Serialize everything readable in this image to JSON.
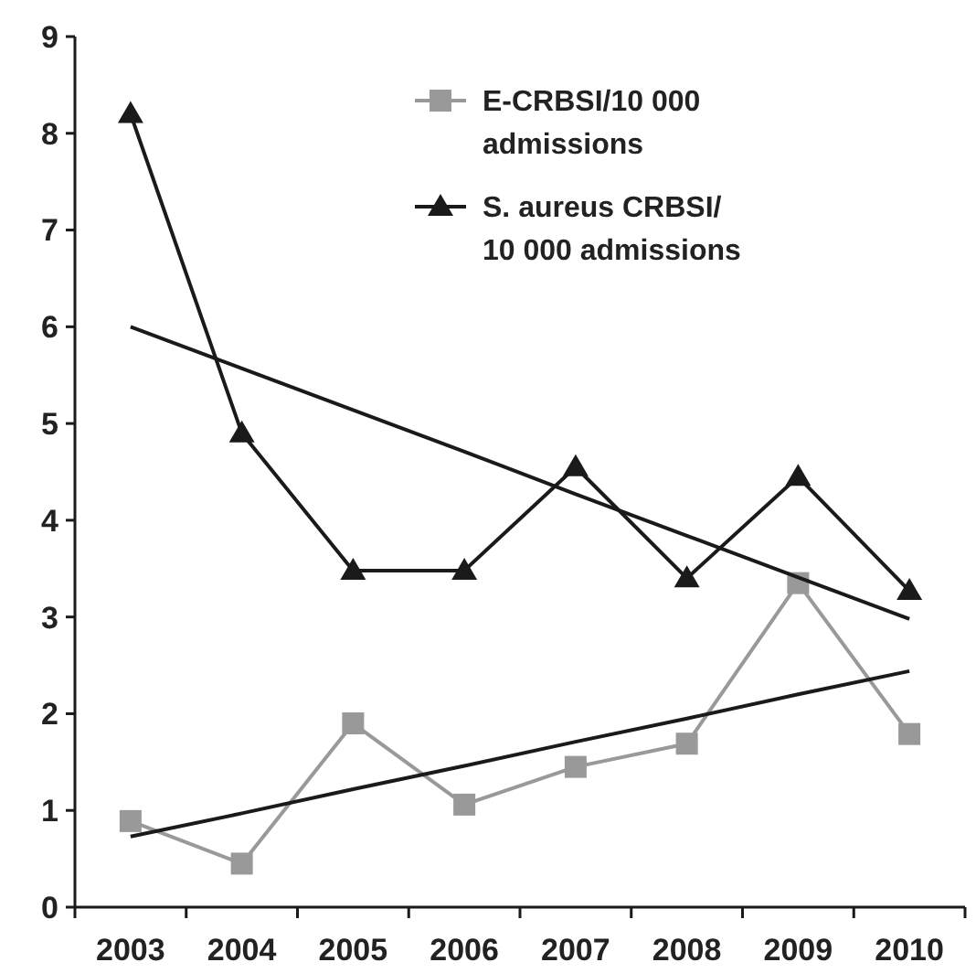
{
  "chart_data": {
    "type": "line",
    "categories": [
      "2003",
      "2004",
      "2005",
      "2006",
      "2007",
      "2008",
      "2009",
      "2010"
    ],
    "ylim": [
      0,
      9
    ],
    "yticks": [
      0,
      1,
      2,
      3,
      4,
      5,
      6,
      7,
      8,
      9
    ],
    "legend": "top right",
    "grid": false,
    "series": [
      {
        "name": "E-CRBSI/10 000 admissions",
        "color": "#999999",
        "marker": "square",
        "values": [
          0.89,
          0.45,
          1.9,
          1.06,
          1.45,
          1.69,
          3.35,
          1.79
        ]
      },
      {
        "name": "S. aureus CRBSI/ 10 000 admissions",
        "color": "#1a1a1a",
        "marker": "triangle",
        "values": [
          8.2,
          4.9,
          3.48,
          3.48,
          4.55,
          3.4,
          4.45,
          3.27
        ]
      },
      {
        "type": "line",
        "color": "#1a1a1a",
        "marker": "none",
        "values": [
          6.0,
          5.57,
          5.14,
          4.71,
          4.27,
          3.84,
          3.41,
          2.98
        ]
      },
      {
        "type": "line",
        "color": "#1a1a1a",
        "marker": "none",
        "values": [
          0.73,
          0.97,
          1.22,
          1.46,
          1.71,
          1.95,
          2.2,
          2.44
        ]
      }
    ]
  }
}
